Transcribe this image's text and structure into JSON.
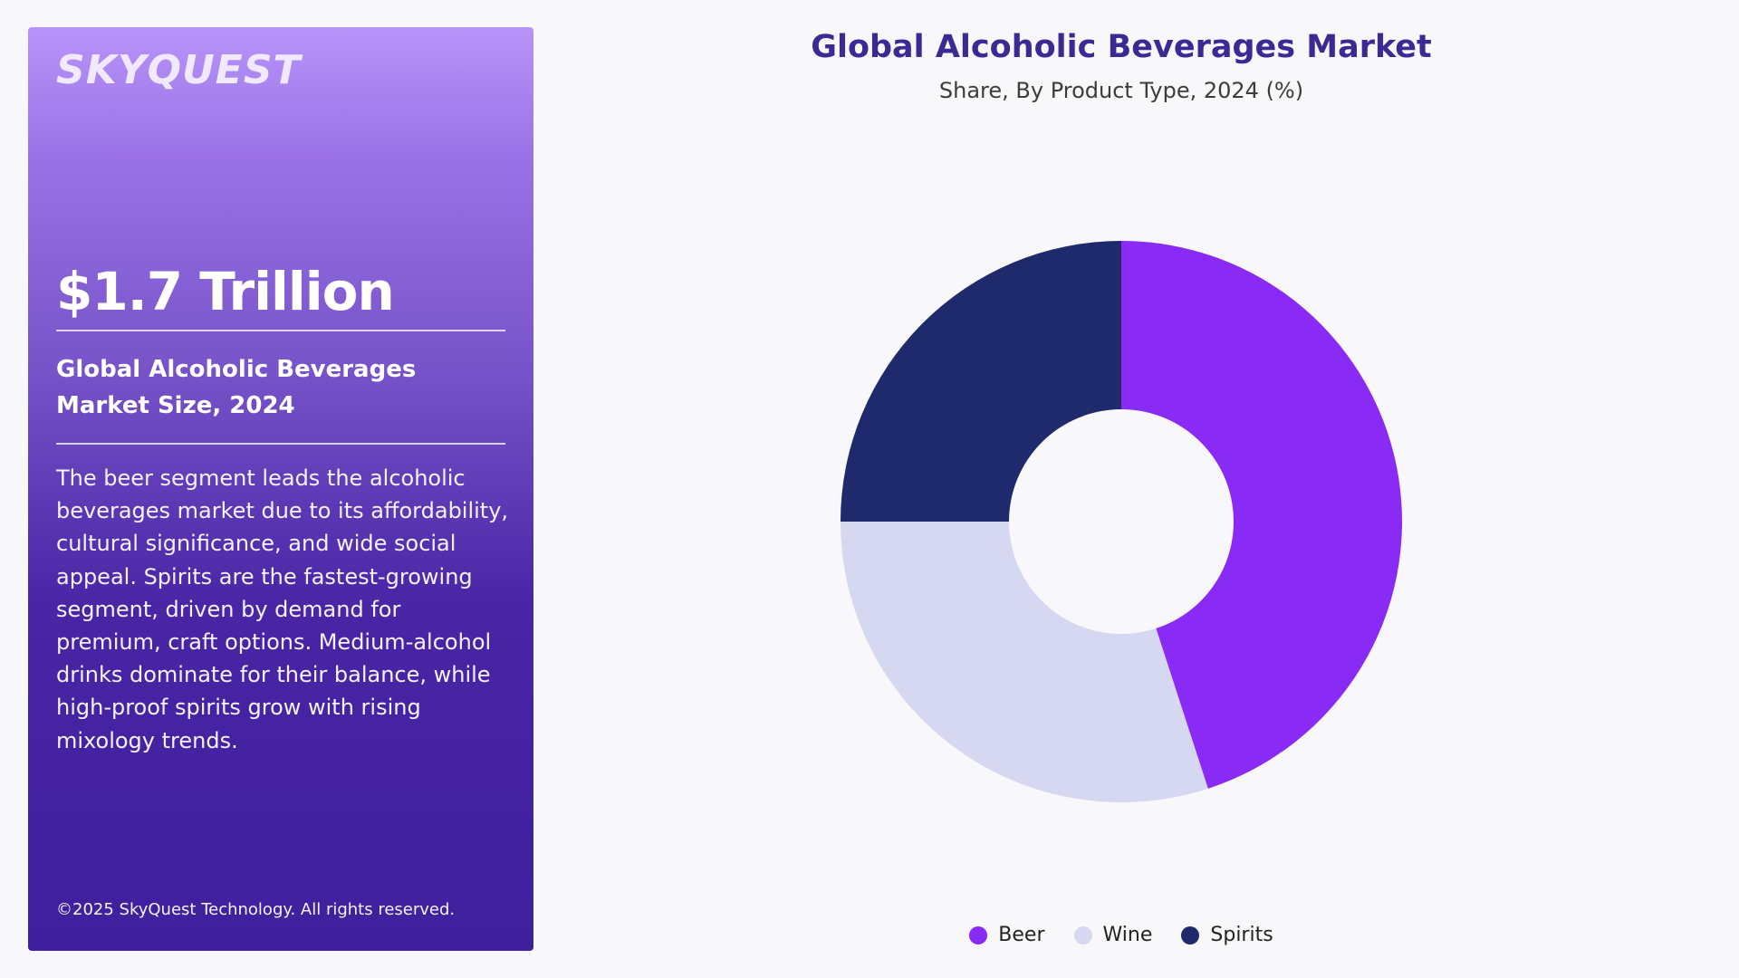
{
  "panel": {
    "logo": "SKYQUEST",
    "headline_value": "$1.7 Trillion",
    "subtitle": "Global Alcoholic Beverages Market Size, 2024",
    "description": "The beer segment leads the alcoholic beverages market due to its affordability, cultural significance, and wide social appeal. Spirits are the fastest-growing segment, driven by demand for premium, craft options. Medium-alcohol drinks dominate for their balance, while high-proof spirits grow with rising mixology trends.",
    "copyright": "©2025 SkyQuest Technology. All rights reserved."
  },
  "chart_data": {
    "type": "pie",
    "title": "Global Alcoholic Beverages Market",
    "subtitle": "Share, By Product Type, 2024 (%)",
    "donut": true,
    "labels": [
      "Beer",
      "Wine",
      "Spirits"
    ],
    "values": [
      45,
      30,
      25
    ],
    "colors": [
      "#8a2bf5",
      "#d6d7f0",
      "#1e2a6b"
    ],
    "legend_position": "bottom",
    "start": "top",
    "direction": "clockwise"
  }
}
